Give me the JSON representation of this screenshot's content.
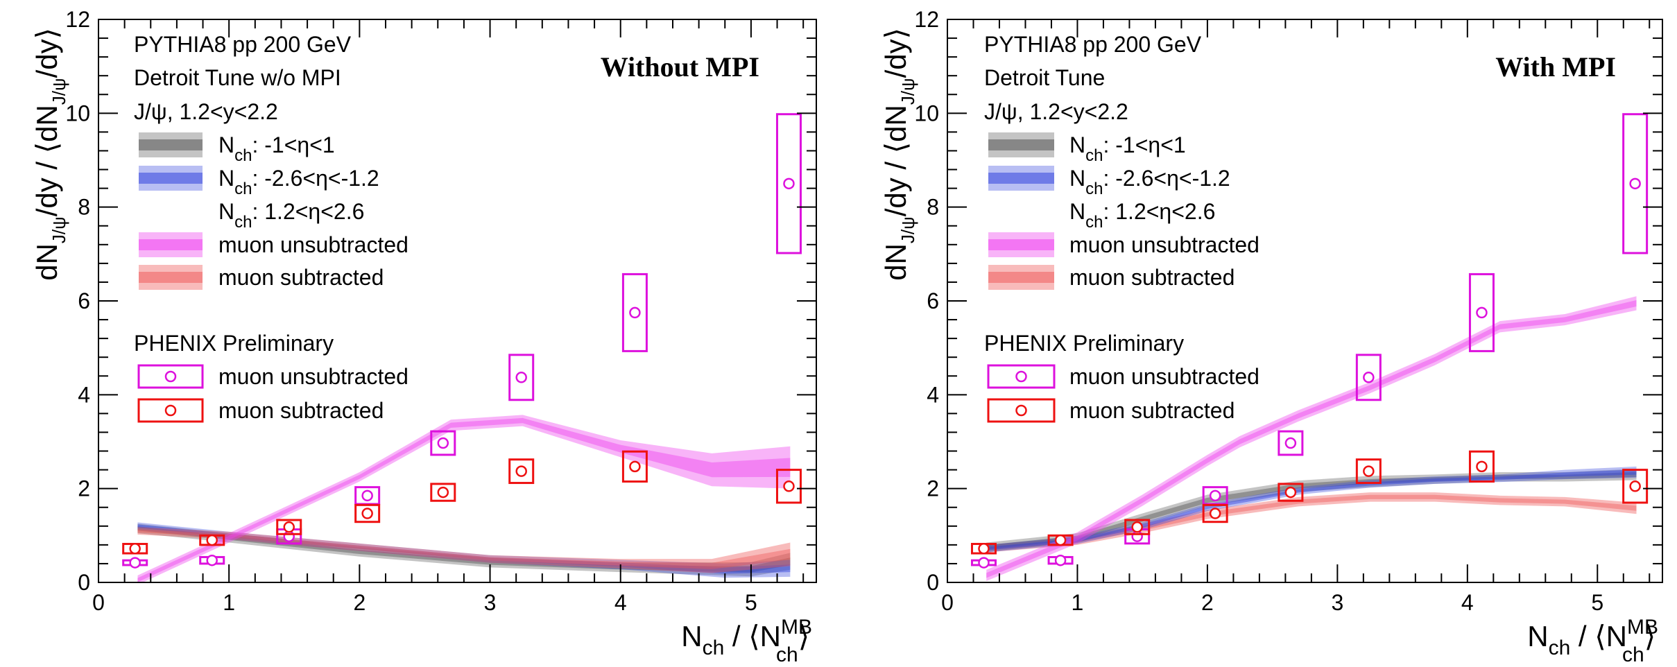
{
  "colors": {
    "grey": "#555555",
    "blue": "#3344dd",
    "magenta": "#ee44ee",
    "magenta_point": "#dd11dd",
    "red": "#ee5555",
    "red_point": "#ee1111",
    "axis": "#000000"
  },
  "chart_data": [
    {
      "type": "line",
      "tag": "Without MPI",
      "info": [
        "PYTHIA8 pp 200 GeV",
        "Detroit Tune w/o MPI",
        "J/ψ, 1.2<y<2.2"
      ],
      "xlim": [
        0,
        5.5
      ],
      "ylim": [
        0,
        12
      ],
      "xticks": [
        0,
        1,
        2,
        3,
        4,
        5
      ],
      "yticks": [
        0,
        2,
        4,
        6,
        8,
        10,
        12
      ],
      "xlabel": {
        "main": "N",
        "sub": "ch",
        "mid": " / ⟨N",
        "sup2": "MB",
        "sub2": "ch",
        "end": "⟩"
      },
      "ylabel": {
        "a": "dN",
        "asub": "J/ψ",
        "b": "/dy / ⟨dN",
        "bsub": "J/ψ",
        "c": "/dy⟩"
      },
      "legend_sim": [
        {
          "label_main": "N",
          "label_sub": "ch",
          "label_rest": ": -1<η<1",
          "series": "grey"
        },
        {
          "label_main": "N",
          "label_sub": "ch",
          "label_rest": ": -2.6<η<-1.2",
          "series": "blue"
        },
        {
          "label_main": "N",
          "label_sub": "ch",
          "label_rest": ": 1.2<η<2.6",
          "series": ""
        },
        {
          "label_main": "muon unsubtracted",
          "label_sub": "",
          "label_rest": "",
          "series": "magenta"
        },
        {
          "label_main": "muon subtracted",
          "label_sub": "",
          "label_rest": "",
          "series": "red"
        }
      ],
      "legend_data_title": "PHENIX Preliminary",
      "legend_data": [
        {
          "label": "muon unsubtracted",
          "series": "magenta"
        },
        {
          "label": "muon subtracted",
          "series": "red"
        }
      ],
      "bands": [
        {
          "name": "grey",
          "x": [
            0.3,
            1,
            2,
            3,
            4,
            5,
            5.3
          ],
          "y": [
            1.15,
            0.95,
            0.65,
            0.42,
            0.32,
            0.28,
            0.45
          ],
          "w": [
            0.1,
            0.1,
            0.1,
            0.1,
            0.1,
            0.15,
            0.18
          ]
        },
        {
          "name": "blue",
          "x": [
            0.3,
            1,
            2,
            3,
            4,
            4.8,
            5.3
          ],
          "y": [
            1.2,
            1.0,
            0.75,
            0.5,
            0.38,
            0.25,
            0.3
          ],
          "w": [
            0.08,
            0.08,
            0.08,
            0.08,
            0.1,
            0.15,
            0.18
          ]
        },
        {
          "name": "red",
          "x": [
            0.3,
            1,
            2,
            3,
            4,
            4.7,
            5.3
          ],
          "y": [
            1.1,
            1.0,
            0.75,
            0.5,
            0.4,
            0.35,
            0.6
          ],
          "w": [
            0.08,
            0.08,
            0.08,
            0.08,
            0.1,
            0.15,
            0.25
          ]
        },
        {
          "name": "magenta",
          "x": [
            0.3,
            1,
            2,
            2.7,
            3.25,
            4,
            4.7,
            5.3
          ],
          "y": [
            0.05,
            0.95,
            2.25,
            3.35,
            3.45,
            2.85,
            2.4,
            2.45
          ],
          "w": [
            0.1,
            0.1,
            0.1,
            0.12,
            0.12,
            0.18,
            0.35,
            0.45
          ]
        }
      ],
      "points": [
        {
          "series": "magenta",
          "x": [
            0.28,
            0.87,
            1.46,
            2.06,
            2.64,
            3.24,
            4.11,
            5.29
          ],
          "y": [
            0.42,
            0.47,
            0.98,
            1.85,
            2.97,
            4.37,
            5.75,
            8.5
          ],
          "sys": [
            0.05,
            0.07,
            0.15,
            0.18,
            0.25,
            0.48,
            0.82,
            1.48
          ]
        },
        {
          "series": "red",
          "x": [
            0.28,
            0.87,
            1.46,
            2.06,
            2.64,
            3.24,
            4.11,
            5.29
          ],
          "y": [
            0.72,
            0.9,
            1.18,
            1.47,
            1.92,
            2.37,
            2.47,
            2.05
          ],
          "sys": [
            0.1,
            0.1,
            0.15,
            0.18,
            0.18,
            0.25,
            0.32,
            0.35
          ]
        }
      ]
    },
    {
      "type": "line",
      "tag": "With MPI",
      "info": [
        "PYTHIA8 pp 200 GeV",
        "Detroit Tune",
        "J/ψ, 1.2<y<2.2"
      ],
      "xlim": [
        0,
        5.5
      ],
      "ylim": [
        0,
        12
      ],
      "xticks": [
        0,
        1,
        2,
        3,
        4,
        5
      ],
      "yticks": [
        0,
        2,
        4,
        6,
        8,
        10,
        12
      ],
      "xlabel": {
        "main": "N",
        "sub": "ch",
        "mid": " / ⟨N",
        "sup2": "MB",
        "sub2": "ch",
        "end": "⟩"
      },
      "ylabel": {
        "a": "dN",
        "asub": "J/ψ",
        "b": "/dy / ⟨dN",
        "bsub": "J/ψ",
        "c": "/dy⟩"
      },
      "legend_sim": [
        {
          "label_main": "N",
          "label_sub": "ch",
          "label_rest": ": -1<η<1",
          "series": "grey"
        },
        {
          "label_main": "N",
          "label_sub": "ch",
          "label_rest": ": -2.6<η<-1.2",
          "series": "blue"
        },
        {
          "label_main": "N",
          "label_sub": "ch",
          "label_rest": ": 1.2<η<2.6",
          "series": ""
        },
        {
          "label_main": "muon unsubtracted",
          "label_sub": "",
          "label_rest": "",
          "series": "magenta"
        },
        {
          "label_main": "muon subtracted",
          "label_sub": "",
          "label_rest": "",
          "series": "red"
        }
      ],
      "legend_data_title": "PHENIX Preliminary",
      "legend_data": [
        {
          "label": "muon unsubtracted",
          "series": "magenta"
        },
        {
          "label": "muon subtracted",
          "series": "red"
        }
      ],
      "bands": [
        {
          "name": "red",
          "x": [
            0.3,
            1,
            1.5,
            2,
            2.7,
            3.25,
            3.75,
            4.25,
            4.75,
            5.3
          ],
          "y": [
            0.72,
            0.88,
            1.15,
            1.45,
            1.72,
            1.82,
            1.82,
            1.75,
            1.72,
            1.58
          ],
          "w": [
            0.08,
            0.08,
            0.1,
            0.1,
            0.1,
            0.1,
            0.1,
            0.1,
            0.1,
            0.12
          ]
        },
        {
          "name": "grey",
          "x": [
            0.3,
            1,
            1.5,
            2,
            2.7,
            3.25,
            3.75,
            4.25,
            4.75,
            5.3
          ],
          "y": [
            0.75,
            0.95,
            1.35,
            1.75,
            2.05,
            2.15,
            2.2,
            2.25,
            2.25,
            2.3
          ],
          "w": [
            0.1,
            0.1,
            0.12,
            0.12,
            0.12,
            0.12,
            0.1,
            0.1,
            0.1,
            0.12
          ]
        },
        {
          "name": "blue",
          "x": [
            0.3,
            1,
            1.5,
            2,
            2.7,
            3.25,
            3.75,
            4.25,
            4.75,
            5.3
          ],
          "y": [
            0.72,
            0.9,
            1.2,
            1.6,
            1.95,
            2.1,
            2.18,
            2.22,
            2.3,
            2.35
          ],
          "w": [
            0.08,
            0.08,
            0.08,
            0.08,
            0.08,
            0.08,
            0.08,
            0.08,
            0.1,
            0.12
          ]
        },
        {
          "name": "magenta",
          "x": [
            0.3,
            1,
            1.5,
            2,
            2.25,
            2.7,
            3.25,
            3.75,
            4.25,
            4.75,
            5.3
          ],
          "y": [
            0.15,
            0.95,
            1.75,
            2.6,
            3.0,
            3.55,
            4.15,
            4.75,
            5.45,
            5.6,
            5.95
          ],
          "w": [
            0.12,
            0.12,
            0.12,
            0.12,
            0.12,
            0.12,
            0.12,
            0.12,
            0.12,
            0.12,
            0.15
          ]
        }
      ],
      "points": [
        {
          "series": "magenta",
          "x": [
            0.28,
            0.87,
            1.46,
            2.06,
            2.64,
            3.24,
            4.11,
            5.29
          ],
          "y": [
            0.42,
            0.47,
            0.98,
            1.85,
            2.97,
            4.37,
            5.75,
            8.5
          ],
          "sys": [
            0.05,
            0.07,
            0.15,
            0.18,
            0.25,
            0.48,
            0.82,
            1.48
          ]
        },
        {
          "series": "red",
          "x": [
            0.28,
            0.87,
            1.46,
            2.06,
            2.64,
            3.24,
            4.11,
            5.29
          ],
          "y": [
            0.72,
            0.9,
            1.18,
            1.47,
            1.92,
            2.37,
            2.47,
            2.05
          ],
          "sys": [
            0.1,
            0.1,
            0.15,
            0.18,
            0.18,
            0.25,
            0.32,
            0.35
          ]
        }
      ]
    }
  ]
}
